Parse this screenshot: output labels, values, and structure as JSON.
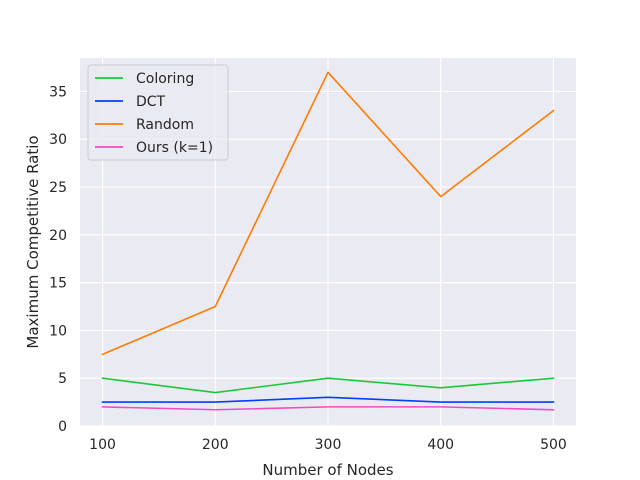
{
  "chart_data": {
    "type": "line",
    "title": "",
    "xlabel": "Number of Nodes",
    "ylabel": "Maximum Competitive Ratio",
    "x": [
      100,
      200,
      300,
      400,
      500
    ],
    "xlim": [
      80,
      520
    ],
    "ylim": [
      0,
      38.5
    ],
    "xticks": [
      100,
      200,
      300,
      400,
      500
    ],
    "yticks": [
      0,
      5,
      10,
      15,
      20,
      25,
      30,
      35
    ],
    "grid": true,
    "legend_position": "top-left",
    "series": [
      {
        "name": "Coloring",
        "color": "#1ac938",
        "values": [
          5.0,
          3.5,
          5.0,
          4.0,
          5.0
        ]
      },
      {
        "name": "DCT",
        "color": "#023eff",
        "values": [
          2.5,
          2.5,
          3.0,
          2.5,
          2.5
        ]
      },
      {
        "name": "Random",
        "color": "#ff7c00",
        "values": [
          7.5,
          12.5,
          37.0,
          24.0,
          33.0
        ]
      },
      {
        "name": "Ours (k=1)",
        "color": "#e8000b",
        "display_color": "#f14cc1",
        "values": [
          2.0,
          1.7,
          2.0,
          2.0,
          1.7
        ]
      }
    ]
  }
}
